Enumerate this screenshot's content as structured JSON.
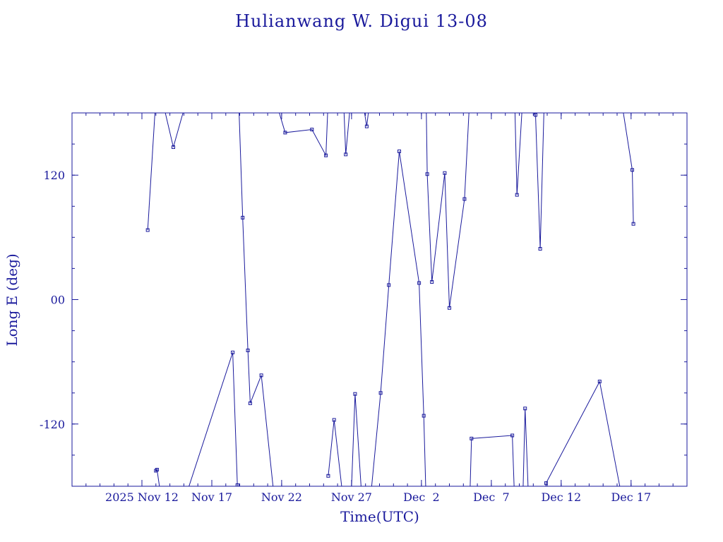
{
  "chart_data": {
    "type": "line",
    "title": "Hulianwang W. Digui 13-08",
    "xlabel": "Time(UTC)",
    "ylabel": "Long E (deg)",
    "xlim": [
      "2025-11-07",
      "2025-12-21"
    ],
    "ylim": [
      -180,
      180
    ],
    "x_tick_labels": [
      "2025 Nov 12",
      "Nov 17",
      "Nov 22",
      "Nov 27",
      "Dec  2",
      "Dec  7",
      "Dec 12",
      "Dec 17"
    ],
    "x_tick_dates": [
      "2025-11-12",
      "2025-11-17",
      "2025-11-22",
      "2025-11-27",
      "2025-12-02",
      "2025-12-07",
      "2025-12-12",
      "2025-12-17"
    ],
    "y_tick_labels": [
      "-120",
      "00",
      "120"
    ],
    "y_tick_values": [
      -120,
      0,
      120
    ],
    "grid": false,
    "color": "#1a1a9c",
    "segments": [
      [
        [
          "2025-11-12 10:00",
          67
        ],
        [
          "2025-11-13 00:00",
          195
        ]
      ],
      [
        [
          "2025-11-13 00:00",
          -165
        ],
        [
          "2025-11-13 02:00",
          -164
        ],
        [
          "2025-11-13 10:00",
          -195
        ]
      ],
      [
        [
          "2025-11-13 10:00",
          195
        ],
        [
          "2025-11-14 06:00",
          147
        ],
        [
          "2025-11-15 06:00",
          195
        ]
      ],
      [
        [
          "2025-11-15 06:00",
          -185
        ],
        [
          "2025-11-18 12:00",
          -51
        ],
        [
          "2025-11-18 20:00",
          -179
        ],
        [
          "2025-11-18 22:00",
          -195
        ]
      ],
      [
        [
          "2025-11-18 22:00",
          195
        ],
        [
          "2025-11-19 05:00",
          79
        ],
        [
          "2025-11-19 14:00",
          -49
        ],
        [
          "2025-11-19 18:00",
          -100
        ],
        [
          "2025-11-20 13:00",
          -73
        ],
        [
          "2025-11-21 12:00",
          -195
        ]
      ],
      [
        [
          "2025-11-21 12:00",
          195
        ],
        [
          "2025-11-22 06:00",
          161
        ],
        [
          "2025-11-24 04:00",
          164
        ],
        [
          "2025-11-25 04:00",
          139
        ],
        [
          "2025-11-25 08:00",
          195
        ]
      ],
      [
        [
          "2025-11-25 08:00",
          -170
        ],
        [
          "2025-11-25 18:00",
          -116
        ],
        [
          "2025-11-26 10:00",
          -195
        ]
      ],
      [
        [
          "2025-11-26 10:00",
          195
        ],
        [
          "2025-11-26 14:00",
          140
        ],
        [
          "2025-11-26 23:00",
          195
        ]
      ],
      [
        [
          "2025-11-26 23:00",
          -195
        ],
        [
          "2025-11-27 06:00",
          -91
        ],
        [
          "2025-11-27 18:00",
          -195
        ]
      ],
      [
        [
          "2025-11-27 18:00",
          195
        ],
        [
          "2025-11-28 02:00",
          167
        ],
        [
          "2025-11-28 08:00",
          195
        ]
      ],
      [
        [
          "2025-11-28 08:00",
          -195
        ],
        [
          "2025-11-29 02:00",
          -90
        ],
        [
          "2025-11-29 16:00",
          14
        ],
        [
          "2025-11-30 10:00",
          143
        ],
        [
          "2025-12-01 20:00",
          16
        ],
        [
          "2025-12-02 04:00",
          -112
        ],
        [
          "2025-12-02 08:00",
          -195
        ]
      ],
      [
        [
          "2025-12-02 08:00",
          195
        ],
        [
          "2025-12-02 10:00",
          121
        ],
        [
          "2025-12-02 18:00",
          17
        ],
        [
          "2025-12-03 16:00",
          122
        ],
        [
          "2025-12-04 00:00",
          -8
        ],
        [
          "2025-12-05 02:00",
          97
        ],
        [
          "2025-12-05 11:00",
          195
        ]
      ],
      [
        [
          "2025-12-05 11:00",
          -195
        ],
        [
          "2025-12-05 14:00",
          -134
        ],
        [
          "2025-12-08 12:00",
          -131
        ],
        [
          "2025-12-08 16:00",
          -195
        ]
      ],
      [
        [
          "2025-12-08 16:00",
          195
        ],
        [
          "2025-12-08 20:00",
          101
        ],
        [
          "2025-12-09 06:00",
          195
        ]
      ],
      [
        [
          "2025-12-09 06:00",
          -195
        ],
        [
          "2025-12-09 10:00",
          -105
        ],
        [
          "2025-12-09 16:00",
          -195
        ]
      ],
      [
        [
          "2025-12-09 16:00",
          195
        ],
        [
          "2025-12-10 04:00",
          178
        ],
        [
          "2025-12-10 12:00",
          49
        ],
        [
          "2025-12-10 19:00",
          195
        ]
      ],
      [
        [
          "2025-12-10 19:00",
          -195
        ],
        [
          "2025-12-10 22:00",
          -177
        ],
        [
          "2025-12-14 18:00",
          -79
        ],
        [
          "2025-12-16 08:00",
          -190
        ]
      ],
      [
        [
          "2025-12-16 08:00",
          190
        ],
        [
          "2025-12-17 02:00",
          125
        ],
        [
          "2025-12-17 04:00",
          73
        ]
      ]
    ]
  }
}
